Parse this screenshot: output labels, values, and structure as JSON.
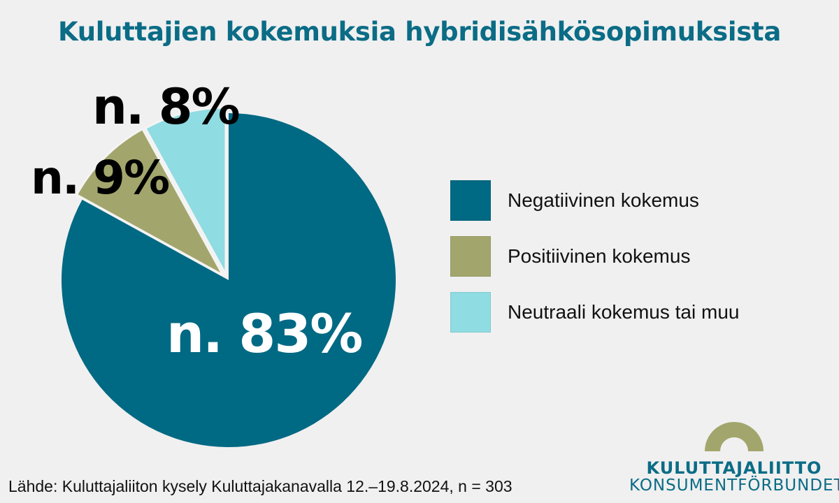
{
  "chart_data": {
    "type": "pie",
    "title": "Kuluttajien kokemuksia hybridisähkösopimuksista",
    "start": "12 o'clock, clockwise",
    "slices": [
      {
        "name": "Negatiivinen kokemus",
        "value": 83,
        "label": "n. 83%",
        "color": "#006983"
      },
      {
        "name": "Positiivinen kokemus",
        "value": 9,
        "label": "n. 9%",
        "color": "#a3a66c"
      },
      {
        "name": "Neutraali kokemus tai muu",
        "value": 8,
        "label": "n. 8%",
        "color": "#8fdce2"
      }
    ],
    "legend": "right"
  },
  "source": "Lähde: Kuluttajaliiton kysely Kuluttajakanavalla 12.–19.8.2024, n = 303",
  "logo": {
    "line1": "KULUTTAJALIITTO",
    "line2": "KONSUMENTFÖRBUNDET",
    "arch_color": "#a3a66c"
  },
  "colors": {
    "background": "#f0f0f0",
    "title": "#0b6c86"
  }
}
